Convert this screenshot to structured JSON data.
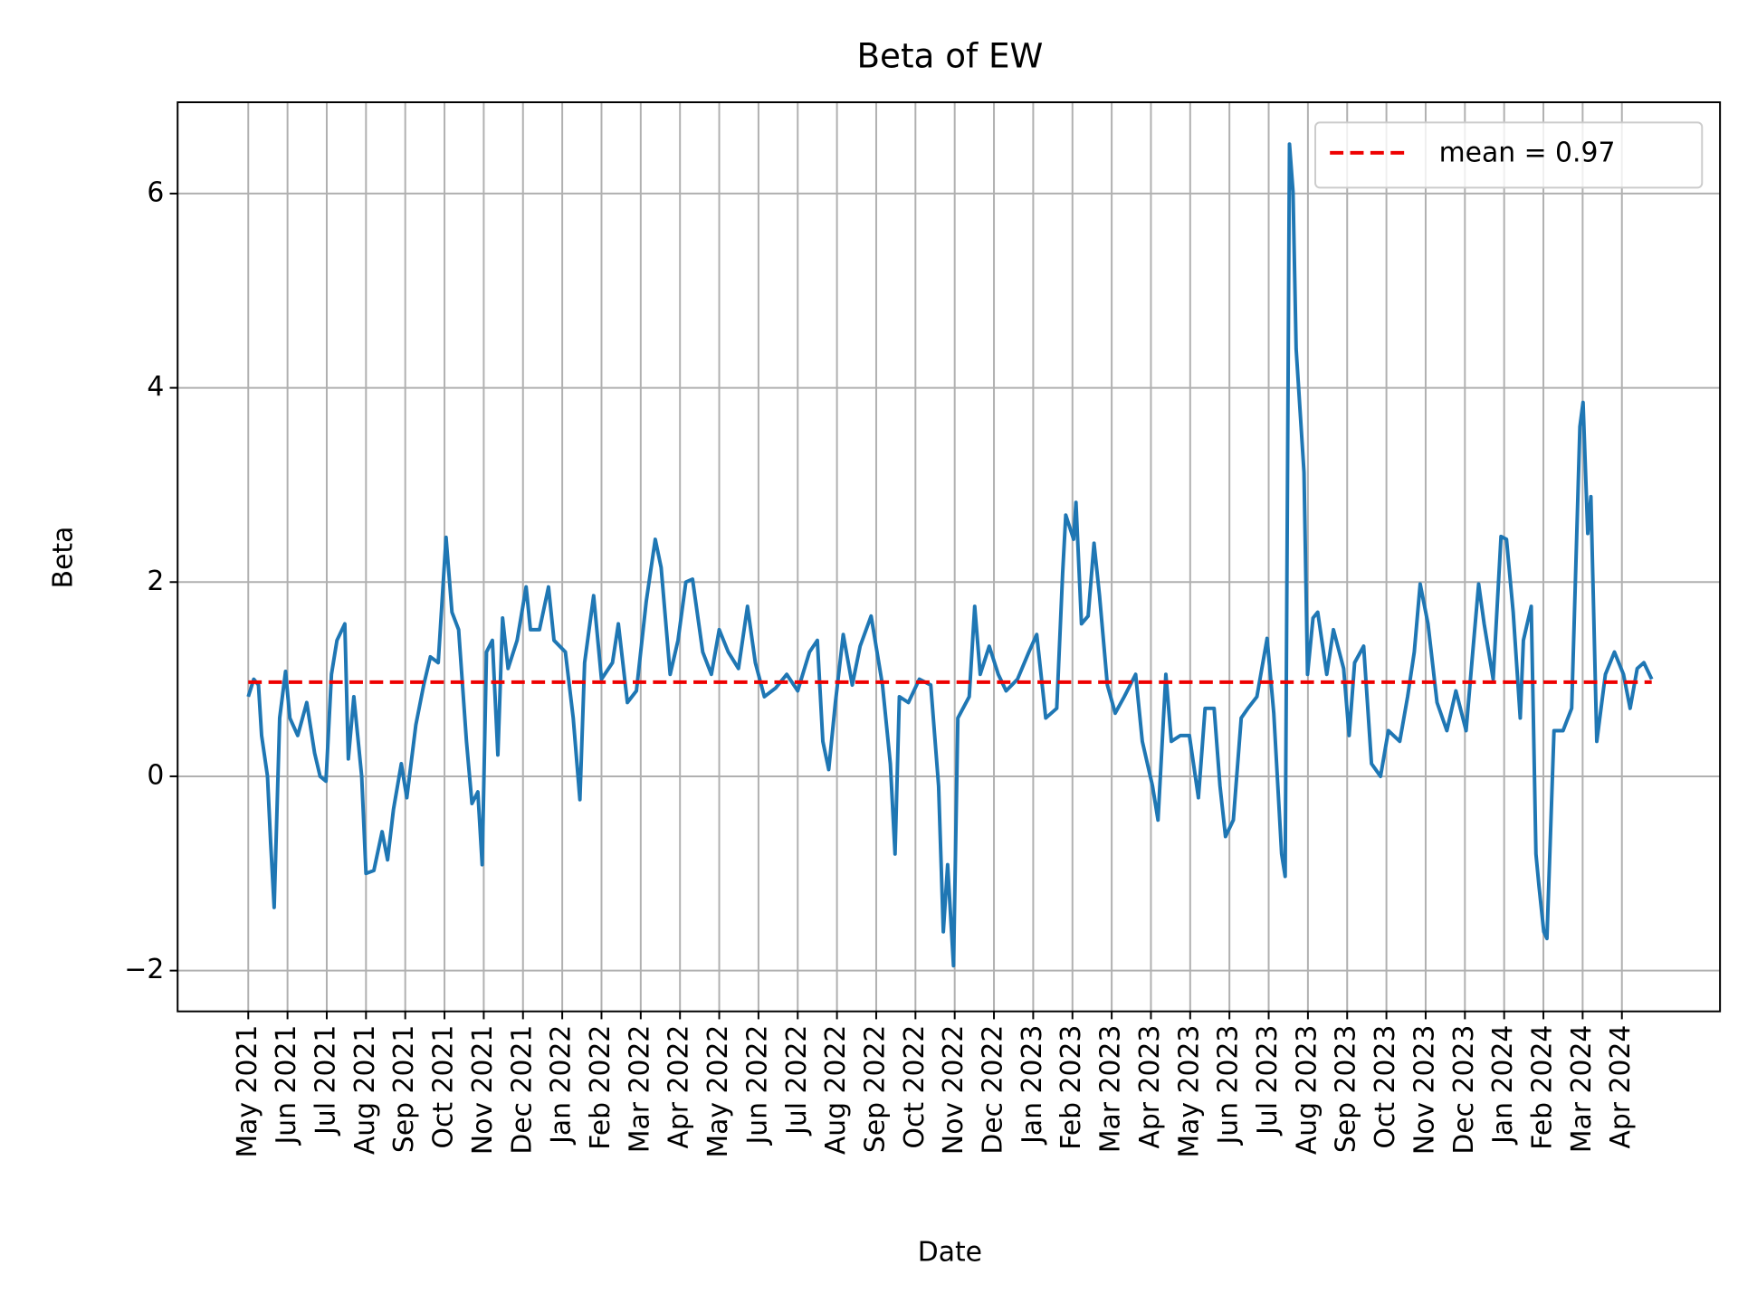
{
  "chart_data": {
    "type": "line",
    "title": "Beta of EW",
    "x_label": "Date",
    "y_label": "Beta",
    "grid": true,
    "legend": "upper right",
    "xlim": [
      -1.8,
      37.5
    ],
    "ylim": [
      -2.42,
      6.94
    ],
    "xticks": [
      {
        "value": 0,
        "label": "May 2021"
      },
      {
        "value": 1,
        "label": "Jun 2021"
      },
      {
        "value": 2,
        "label": "Jul 2021"
      },
      {
        "value": 3,
        "label": "Aug 2021"
      },
      {
        "value": 4,
        "label": "Sep 2021"
      },
      {
        "value": 5,
        "label": "Oct 2021"
      },
      {
        "value": 6,
        "label": "Nov 2021"
      },
      {
        "value": 7,
        "label": "Dec 2021"
      },
      {
        "value": 8,
        "label": "Jan 2022"
      },
      {
        "value": 9,
        "label": "Feb 2022"
      },
      {
        "value": 10,
        "label": "Mar 2022"
      },
      {
        "value": 11,
        "label": "Apr 2022"
      },
      {
        "value": 12,
        "label": "May 2022"
      },
      {
        "value": 13,
        "label": "Jun 2022"
      },
      {
        "value": 14,
        "label": "Jul 2022"
      },
      {
        "value": 15,
        "label": "Aug 2022"
      },
      {
        "value": 16,
        "label": "Sep 2022"
      },
      {
        "value": 17,
        "label": "Oct 2022"
      },
      {
        "value": 18,
        "label": "Nov 2022"
      },
      {
        "value": 19,
        "label": "Dec 2022"
      },
      {
        "value": 20,
        "label": "Jan 2023"
      },
      {
        "value": 21,
        "label": "Feb 2023"
      },
      {
        "value": 22,
        "label": "Mar 2023"
      },
      {
        "value": 23,
        "label": "Apr 2023"
      },
      {
        "value": 24,
        "label": "May 2023"
      },
      {
        "value": 25,
        "label": "Jun 2023"
      },
      {
        "value": 26,
        "label": "Jul 2023"
      },
      {
        "value": 27,
        "label": "Aug 2023"
      },
      {
        "value": 28,
        "label": "Sep 2023"
      },
      {
        "value": 29,
        "label": "Oct 2023"
      },
      {
        "value": 30,
        "label": "Nov 2023"
      },
      {
        "value": 31,
        "label": "Dec 2023"
      },
      {
        "value": 32,
        "label": "Jan 2024"
      },
      {
        "value": 33,
        "label": "Feb 2024"
      },
      {
        "value": 34,
        "label": "Mar 2024"
      },
      {
        "value": 35,
        "label": "Apr 2024"
      }
    ],
    "yticks": [
      {
        "value": -2,
        "label": "−2"
      },
      0,
      2,
      4,
      6
    ],
    "x": [
      0,
      0.14,
      0.26,
      0.34,
      0.49,
      0.57,
      0.66,
      0.8,
      0.95,
      1.06,
      1.26,
      1.49,
      1.69,
      1.83,
      1.98,
      2.12,
      2.26,
      2.46,
      2.55,
      2.69,
      2.89,
      3.0,
      3.2,
      3.41,
      3.55,
      3.7,
      3.9,
      4.04,
      4.27,
      4.47,
      4.64,
      4.84,
      5.04,
      5.19,
      5.36,
      5.56,
      5.7,
      5.85,
      5.96,
      6.07,
      6.22,
      6.36,
      6.48,
      6.62,
      6.85,
      7.08,
      7.19,
      7.42,
      7.65,
      7.79,
      8.08,
      8.28,
      8.45,
      8.57,
      8.8,
      9.0,
      9.28,
      9.43,
      9.66,
      9.89,
      10.14,
      10.37,
      10.52,
      10.75,
      10.95,
      11.15,
      11.32,
      11.58,
      11.8,
      12.0,
      12.23,
      12.49,
      12.72,
      12.92,
      13.15,
      13.44,
      13.72,
      14.0,
      14.3,
      14.5,
      14.64,
      14.79,
      14.96,
      15.16,
      15.39,
      15.59,
      15.87,
      16.16,
      16.36,
      16.48,
      16.59,
      16.82,
      17.1,
      17.39,
      17.59,
      17.71,
      17.82,
      17.97,
      18.08,
      18.37,
      18.51,
      18.65,
      18.88,
      19.11,
      19.31,
      19.6,
      19.89,
      20.09,
      20.32,
      20.6,
      20.75,
      20.83,
      21.03,
      21.09,
      21.23,
      21.4,
      21.55,
      21.69,
      21.89,
      22.09,
      22.32,
      22.61,
      22.78,
      23.04,
      23.18,
      23.38,
      23.52,
      23.75,
      23.98,
      24.21,
      24.38,
      24.61,
      24.76,
      24.9,
      25.1,
      25.3,
      25.47,
      25.7,
      25.96,
      26.13,
      26.33,
      26.42,
      26.53,
      26.62,
      26.7,
      26.9,
      26.99,
      27.13,
      27.25,
      27.48,
      27.65,
      27.91,
      28.05,
      28.19,
      28.42,
      28.62,
      28.85,
      29.05,
      29.34,
      29.54,
      29.71,
      29.86,
      30.06,
      30.29,
      30.54,
      30.77,
      31.03,
      31.2,
      31.35,
      31.49,
      31.72,
      31.92,
      32.06,
      32.23,
      32.41,
      32.49,
      32.69,
      32.81,
      32.89,
      33.01,
      33.09,
      33.27,
      33.5,
      33.72,
      33.93,
      34.01,
      34.13,
      34.21,
      34.36,
      34.58,
      34.81,
      35.04,
      35.21,
      35.39,
      35.56,
      35.76
    ],
    "series": [
      {
        "color": "#1f77b4",
        "values": [
          0.82,
          1.0,
          0.94,
          0.42,
          0.0,
          -0.68,
          -1.35,
          0.6,
          1.08,
          0.6,
          0.42,
          0.76,
          0.24,
          0,
          -0.05,
          1.05,
          1.4,
          1.57,
          0.18,
          0.82,
          0,
          -1.0,
          -0.97,
          -0.57,
          -0.86,
          -0.34,
          0.13,
          -0.22,
          0.53,
          0.94,
          1.23,
          1.17,
          2.46,
          1.69,
          1.51,
          0.36,
          -0.28,
          -0.16,
          -0.91,
          1.28,
          1.4,
          0.22,
          1.63,
          1.11,
          1.4,
          1.95,
          1.51,
          1.51,
          1.95,
          1.4,
          1.28,
          0.6,
          -0.24,
          1.17,
          1.86,
          1.0,
          1.17,
          1.57,
          0.76,
          0.88,
          1.8,
          2.44,
          2.15,
          1.05,
          1.4,
          2.0,
          2.03,
          1.28,
          1.05,
          1.51,
          1.28,
          1.11,
          1.75,
          1.17,
          0.82,
          0.91,
          1.05,
          0.88,
          1.28,
          1.4,
          0.36,
          0.07,
          0.76,
          1.46,
          0.94,
          1.34,
          1.65,
          0.94,
          0.13,
          -0.8,
          0.82,
          0.76,
          1.0,
          0.94,
          -0.1,
          -1.6,
          -0.91,
          -1.95,
          0.6,
          0.82,
          1.75,
          1.05,
          1.34,
          1.05,
          0.88,
          1.0,
          1.28,
          1.46,
          0.6,
          0.7,
          2.09,
          2.69,
          2.44,
          2.82,
          1.57,
          1.65,
          2.4,
          1.86,
          0.94,
          0.65,
          0.82,
          1.05,
          0.36,
          -0.1,
          -0.45,
          1.05,
          0.36,
          0.42,
          0.42,
          -0.22,
          0.7,
          0.7,
          -0.1,
          -0.62,
          -0.45,
          0.6,
          0.7,
          0.82,
          1.42,
          0.65,
          -0.8,
          -1.03,
          6.51,
          6.02,
          4.4,
          3.13,
          1.05,
          1.63,
          1.69,
          1.05,
          1.51,
          1.11,
          0.42,
          1.17,
          1.34,
          0.13,
          0.0,
          0.47,
          0.36,
          0.82,
          1.28,
          1.98,
          1.57,
          0.76,
          0.47,
          0.88,
          0.47,
          1.28,
          1.98,
          1.57,
          1.0,
          2.47,
          2.44,
          1.69,
          0.6,
          1.4,
          1.75,
          -0.8,
          -1.14,
          -1.6,
          -1.67,
          0.47,
          0.47,
          0.7,
          3.6,
          3.85,
          2.5,
          2.88,
          0.36,
          1.05,
          1.28,
          1.05,
          0.7,
          1.11,
          1.17,
          1.0
        ]
      }
    ],
    "mean_line": {
      "name": "mean = 0.97",
      "value": 0.97,
      "color": "#ee0000"
    }
  }
}
